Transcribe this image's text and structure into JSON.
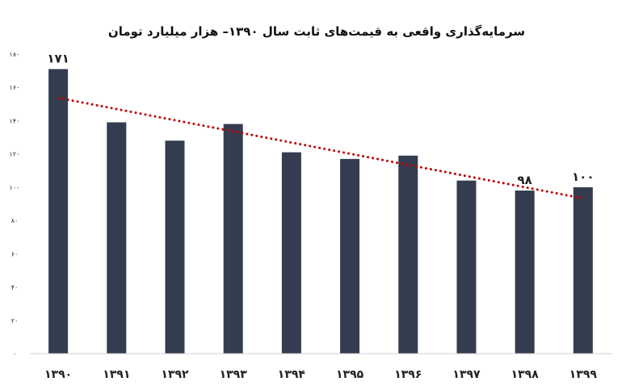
{
  "chart_data": {
    "type": "bar",
    "title": "سرمایه‌گذاری واقعی به قیمت‌های ثابت سال ۱۳۹۰– هزار میلیارد تومان",
    "xlabel": "",
    "ylabel": "",
    "categories": [
      "۱۳۹۰",
      "۱۳۹۱",
      "۱۳۹۲",
      "۱۳۹۳",
      "۱۳۹۴",
      "۱۳۹۵",
      "۱۳۹۶",
      "۱۳۹۷",
      "۱۳۹۸",
      "۱۳۹۹"
    ],
    "values": [
      171,
      139,
      128,
      138,
      121,
      117,
      119,
      104,
      98,
      100
    ],
    "data_labels": [
      {
        "index": 0,
        "text": "۱۷۱"
      },
      {
        "index": 8,
        "text": "۹۸"
      },
      {
        "index": 9,
        "text": "۱۰۰"
      }
    ],
    "ylim": [
      0,
      180
    ],
    "yticks": [
      0,
      20,
      40,
      60,
      80,
      100,
      120,
      140,
      160,
      180
    ],
    "ytick_labels": [
      "۰",
      "۲۰",
      "۴۰",
      "۶۰",
      "۸۰",
      "۱۰۰",
      "۱۲۰",
      "۱۴۰",
      "۱۶۰",
      "۱۸۰"
    ],
    "trendline": {
      "type": "linear",
      "style": "dotted",
      "color": "#c00000"
    },
    "bar_color": "#333d4f",
    "grid": false,
    "legend": "none"
  }
}
